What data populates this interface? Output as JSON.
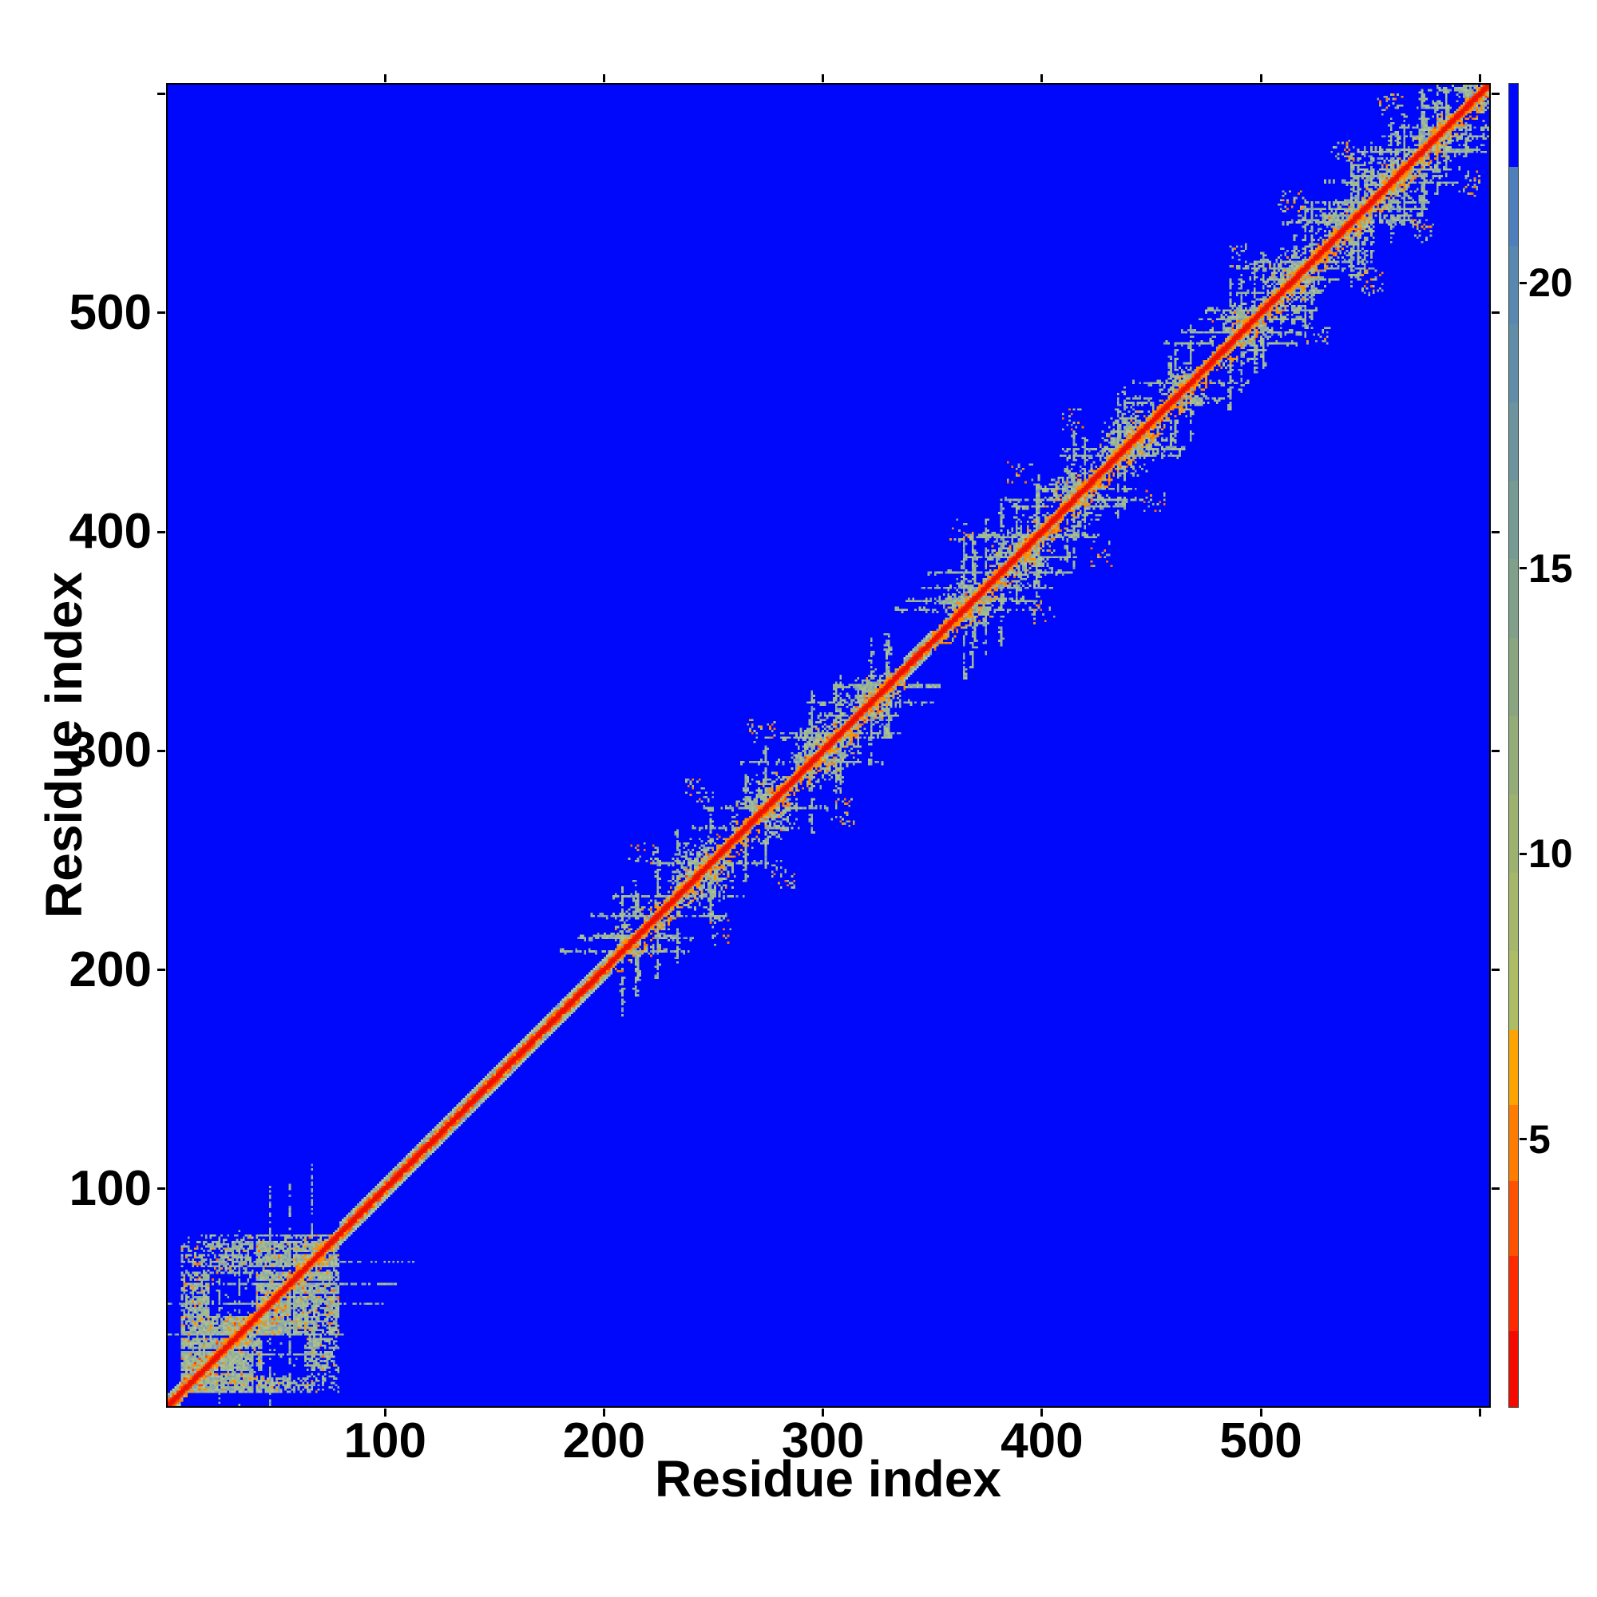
{
  "chart_data": {
    "type": "heatmap",
    "title": "",
    "xlabel": "Residue index",
    "ylabel": "Residue index",
    "x_ticks": [
      100,
      200,
      300,
      400,
      500
    ],
    "y_ticks": [
      100,
      200,
      300,
      400,
      500
    ],
    "unlabeled_ticks": [
      600
    ],
    "axis_range": [
      0,
      605
    ],
    "n_residues": 600,
    "grid": false,
    "legend": "colorbar-right",
    "colorbar": {
      "ticks": [
        5,
        10,
        15,
        20
      ],
      "tick_labels": [
        "5",
        "10",
        "15",
        "20"
      ],
      "vmin": 0.3,
      "vmax": 23.5,
      "blue_fraction": 0.063,
      "orange_start_fraction": 0.715,
      "segments_top_to_bottom": [
        "#0008fc",
        "#4e7ebc",
        "#5887b2",
        "#628da8",
        "#6c939e",
        "#769a94",
        "#80a08a",
        "#8aa681",
        "#94ac78",
        "#9eb270",
        "#a6b76b",
        "#aebc66",
        "#ffa300",
        "#ff7c00",
        "#ff5200",
        "#ff2a00",
        "#f50a00"
      ]
    },
    "colors": {
      "background": "#0008fc",
      "frame": "#000000",
      "text": "#000000",
      "diag_red": "#ee1200",
      "diag_red2": "#fb3c00",
      "orange": "#ff9100",
      "deep_orange": "#ff6f00",
      "red_orange": "#ff4000",
      "light_sage": "#b9c9a8",
      "sage_palette": [
        "#9cb592",
        "#a5bb8c",
        "#92af9a",
        "#a9be90",
        "#8ea8a3",
        "#b0c29a",
        "#9fb88e",
        "#a5bb8c",
        "#7e9cc0"
      ]
    },
    "diagonal_band": {
      "red_halfwidth": 1,
      "orange_halfwidth": 2,
      "sage_halfwidth": 5
    },
    "contact_domains": {
      "ring_domain": {
        "range": [
          7,
          78
        ],
        "holes": [
          {
            "i": [
              20,
              40
            ],
            "j": [
              42,
              60
            ]
          },
          {
            "i": [
              44,
              62
            ],
            "j": [
              14,
              32
            ]
          }
        ],
        "arm_anchors": [
          24,
          33,
          47,
          56,
          66
        ]
      },
      "star_blobs": [
        {
          "center": 217,
          "radius": 13
        },
        {
          "center": 243,
          "radius": 15
        },
        {
          "center": 271,
          "radius": 15
        },
        {
          "center": 298,
          "radius": 15
        },
        {
          "center": 321,
          "radius": 12
        },
        {
          "center": 362,
          "radius": 13
        },
        {
          "center": 388,
          "radius": 15
        },
        {
          "center": 413,
          "radius": 14
        },
        {
          "center": 439,
          "radius": 15
        },
        {
          "center": 461,
          "radius": 11
        },
        {
          "center": 488,
          "radius": 14
        },
        {
          "center": 512,
          "radius": 14
        },
        {
          "center": 535,
          "radius": 13
        },
        {
          "center": 557,
          "radius": 13
        },
        {
          "center": 577,
          "radius": 12
        },
        {
          "center": 595,
          "radius": 9
        }
      ],
      "offdiag_patches": [
        [
          216,
          252
        ],
        [
          242,
          280
        ],
        [
          270,
          307
        ],
        [
          361,
          398
        ],
        [
          387,
          424
        ],
        [
          412,
          449
        ],
        [
          487,
          523
        ],
        [
          511,
          547
        ],
        [
          534,
          570
        ],
        [
          556,
          591
        ]
      ]
    },
    "seed": 1337
  }
}
